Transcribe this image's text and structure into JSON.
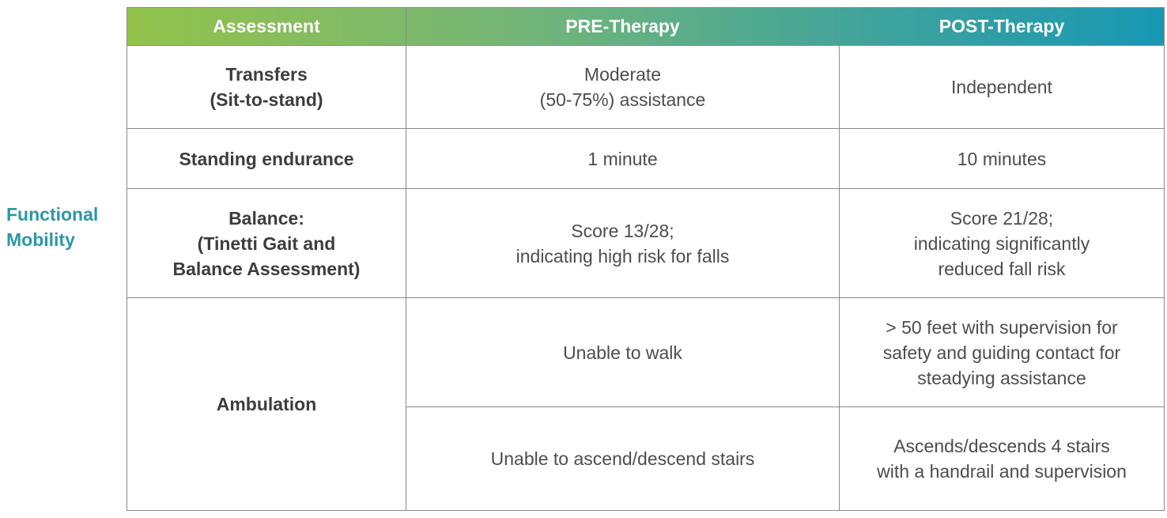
{
  "side_label": {
    "lines": [
      "Functional",
      "Mobility"
    ]
  },
  "table": {
    "headers": [
      "Assessment",
      "PRE-Therapy",
      "POST-Therapy"
    ],
    "rows": [
      {
        "assessment": [
          "Transfers",
          "(Sit-to-stand)"
        ],
        "pre": [
          "Moderate",
          "(50-75%) assistance"
        ],
        "post": [
          "Independent"
        ]
      },
      {
        "assessment": [
          "Standing endurance"
        ],
        "pre": [
          "1 minute"
        ],
        "post": [
          "10 minutes"
        ]
      },
      {
        "assessment": [
          "Balance:",
          "(Tinetti Gait and",
          "Balance Assessment)"
        ],
        "pre": [
          "Score 13/28;",
          "indicating high risk for falls"
        ],
        "post": [
          "Score 21/28;",
          "indicating significantly",
          "reduced fall risk"
        ]
      },
      {
        "assessment": [
          "Ambulation"
        ],
        "sub_rows": [
          {
            "pre": [
              "Unable to walk"
            ],
            "post": [
              "> 50 feet with supervision for",
              "safety and guiding contact for",
              "steadying assistance"
            ]
          },
          {
            "pre": [
              "Unable to ascend/descend stairs"
            ],
            "post": [
              "Ascends/descends 4 stairs",
              "with a handrail and supervision"
            ]
          }
        ]
      }
    ]
  },
  "colors": {
    "header_gradient_start": "#93c24a",
    "header_gradient_end": "#1898b4",
    "side_label": "#2b97a8",
    "border": "#8a8a8a"
  }
}
